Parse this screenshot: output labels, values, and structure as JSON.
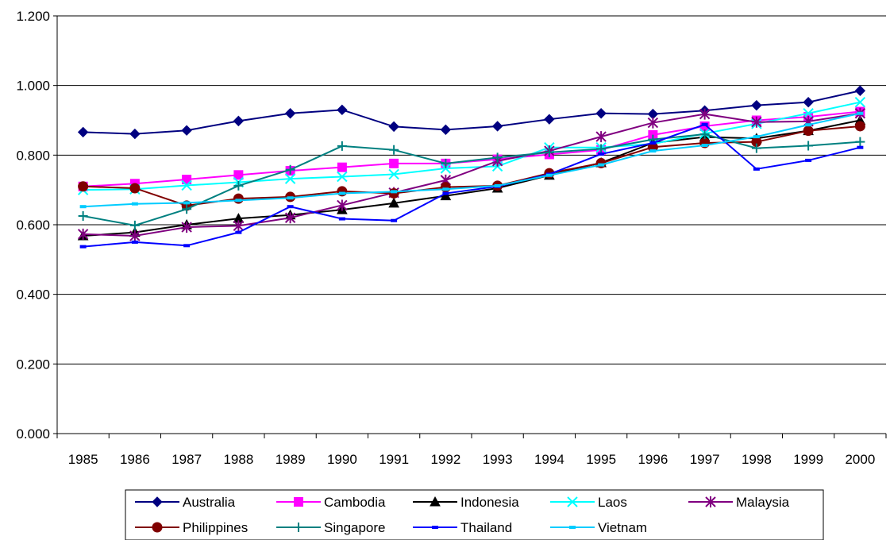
{
  "chart_data": {
    "type": "line",
    "title": "",
    "xlabel": "",
    "ylabel": "",
    "categories": [
      "1985",
      "1986",
      "1987",
      "1988",
      "1989",
      "1990",
      "1991",
      "1992",
      "1993",
      "1994",
      "1995",
      "1996",
      "1997",
      "1998",
      "1999",
      "2000"
    ],
    "ylim": [
      0,
      1.2
    ],
    "yticks": [
      "0.000",
      "0.200",
      "0.400",
      "0.600",
      "0.800",
      "1.000",
      "1.200"
    ],
    "grid": "horizontal",
    "legend_position": "bottom",
    "series": [
      {
        "name": "Australia",
        "color": "#000080",
        "marker": "diamond",
        "values": [
          0.866,
          0.861,
          0.871,
          0.898,
          0.92,
          0.93,
          0.882,
          0.873,
          0.883,
          0.903,
          0.92,
          0.918,
          0.928,
          0.943,
          0.952,
          0.985
        ]
      },
      {
        "name": "Cambodia",
        "color": "#ff00ff",
        "marker": "square",
        "values": [
          0.71,
          0.718,
          0.73,
          0.743,
          0.755,
          0.765,
          0.776,
          0.776,
          0.788,
          0.802,
          0.815,
          0.858,
          0.883,
          0.9,
          0.91,
          0.925
        ]
      },
      {
        "name": "Indonesia",
        "color": "#000000",
        "marker": "triangle",
        "values": [
          0.568,
          0.578,
          0.6,
          0.618,
          0.628,
          0.643,
          0.662,
          0.683,
          0.705,
          0.742,
          0.778,
          0.835,
          0.852,
          0.848,
          0.87,
          0.9
        ]
      },
      {
        "name": "Laos",
        "color": "#00ffff",
        "marker": "x",
        "values": [
          0.7,
          0.702,
          0.713,
          0.722,
          0.732,
          0.738,
          0.745,
          0.762,
          0.768,
          0.822,
          0.822,
          0.832,
          0.862,
          0.89,
          0.92,
          0.952
        ]
      },
      {
        "name": "Malaysia",
        "color": "#800080",
        "marker": "star",
        "values": [
          0.573,
          0.568,
          0.593,
          0.597,
          0.62,
          0.656,
          0.692,
          0.728,
          0.783,
          0.812,
          0.853,
          0.893,
          0.918,
          0.895,
          0.897,
          0.92
        ]
      },
      {
        "name": "Philippines",
        "color": "#800000",
        "marker": "circle",
        "values": [
          0.71,
          0.705,
          0.655,
          0.675,
          0.68,
          0.696,
          0.69,
          0.708,
          0.712,
          0.748,
          0.777,
          0.823,
          0.835,
          0.838,
          0.87,
          0.883
        ]
      },
      {
        "name": "Singapore",
        "color": "#008080",
        "marker": "plus",
        "values": [
          0.625,
          0.598,
          0.645,
          0.712,
          0.758,
          0.826,
          0.815,
          0.776,
          0.793,
          0.808,
          0.818,
          0.845,
          0.86,
          0.82,
          0.827,
          0.838
        ]
      },
      {
        "name": "Thailand",
        "color": "#0000ff",
        "marker": "dash",
        "values": [
          0.537,
          0.55,
          0.54,
          0.578,
          0.652,
          0.617,
          0.612,
          0.69,
          0.71,
          0.745,
          0.803,
          0.835,
          0.888,
          0.76,
          0.785,
          0.822
        ]
      },
      {
        "name": "Vietnam",
        "color": "#00ccff",
        "marker": "dash",
        "values": [
          0.652,
          0.66,
          0.663,
          0.67,
          0.677,
          0.69,
          0.695,
          0.702,
          0.712,
          0.742,
          0.772,
          0.812,
          0.828,
          0.853,
          0.887,
          0.92
        ]
      }
    ]
  }
}
